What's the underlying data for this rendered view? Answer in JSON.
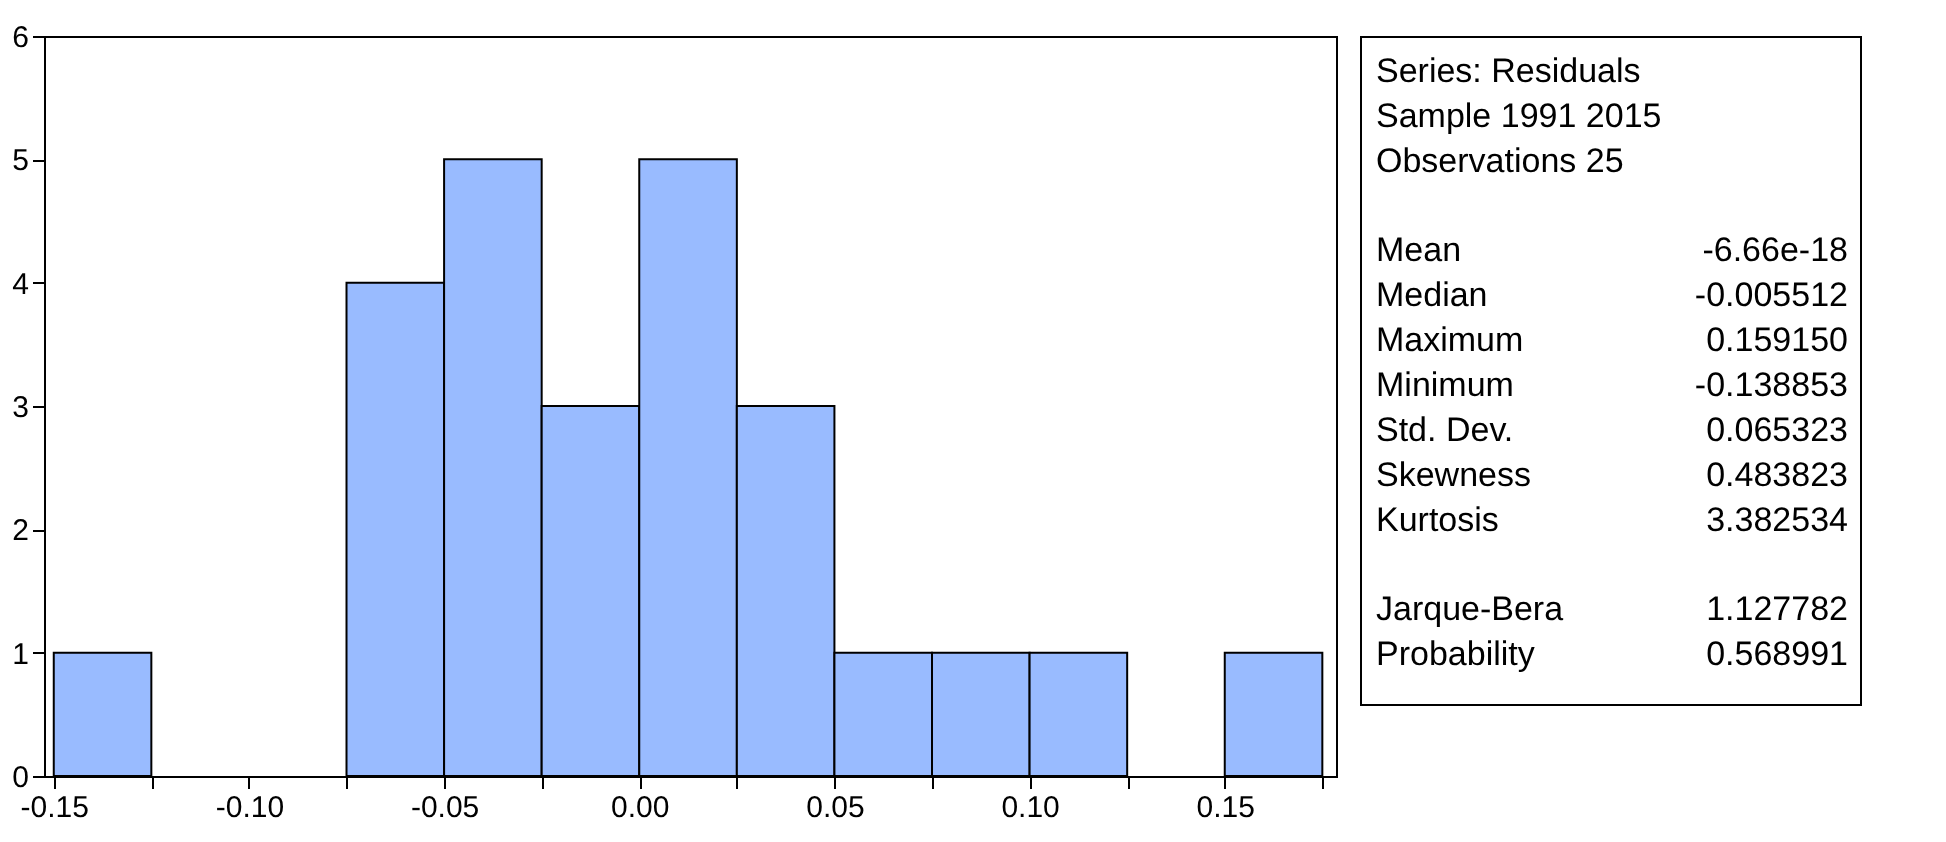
{
  "chart_data": {
    "type": "histogram",
    "bins": [
      -0.15,
      -0.125,
      -0.1,
      -0.075,
      -0.05,
      -0.025,
      0,
      0.025,
      0.05,
      0.075,
      0.1,
      0.125,
      0.15,
      0.175
    ],
    "values": [
      1,
      0,
      0,
      4,
      5,
      3,
      5,
      3,
      1,
      1,
      1,
      0,
      1
    ],
    "color": "#99bbff",
    "xlim": [
      -0.1525,
      0.1785
    ],
    "xticks": [
      {
        "value": -0.15,
        "label": "-0.15"
      },
      {
        "value": -0.125,
        "label": null
      },
      {
        "value": -0.1,
        "label": "-0.10"
      },
      {
        "value": -0.075,
        "label": null
      },
      {
        "value": -0.05,
        "label": "-0.05"
      },
      {
        "value": -0.025,
        "label": null
      },
      {
        "value": 0,
        "label": "0.00"
      },
      {
        "value": 0.025,
        "label": null
      },
      {
        "value": 0.05,
        "label": "0.05"
      },
      {
        "value": 0.075,
        "label": null
      },
      {
        "value": 0.1,
        "label": "0.10"
      },
      {
        "value": 0.125,
        "label": null
      },
      {
        "value": 0.15,
        "label": "0.15"
      },
      {
        "value": 0.175,
        "label": null
      }
    ],
    "ylim": [
      0,
      6
    ],
    "yticks": [
      0,
      1,
      2,
      3,
      4,
      5,
      6
    ],
    "grid": false,
    "annotations": [
      "Series: Residuals",
      "Sample 1991 2015",
      "Observations 25",
      "Mean\t-6.66e-18",
      "Median\t-0.005512",
      "Maximum\t0.159150",
      "Minimum\t-0.138853",
      "Std. Dev.\t0.065323",
      "Skewness\t0.483823",
      "Kurtosis\t3.382534",
      "Jarque-Bera\t1.127782",
      "Probability\t0.568991"
    ]
  }
}
